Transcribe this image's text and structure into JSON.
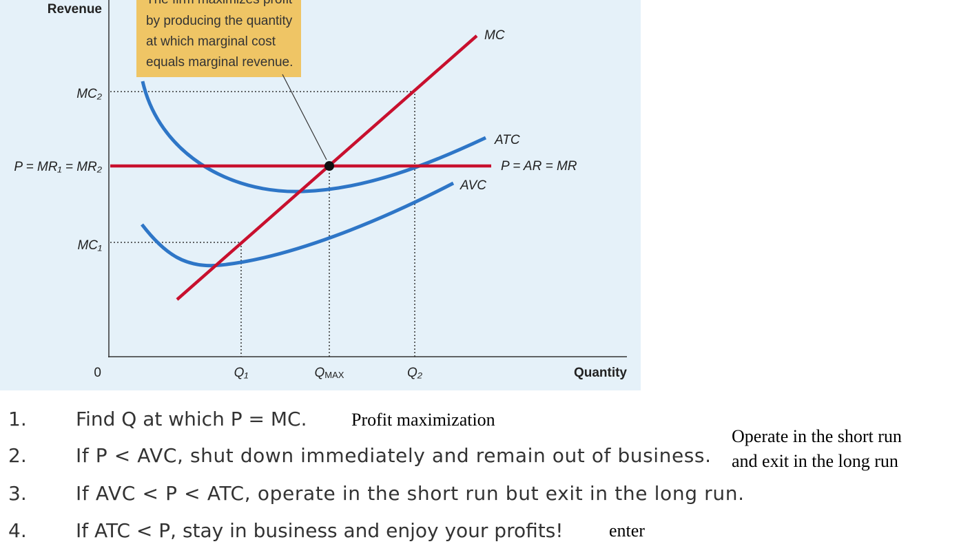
{
  "diagram": {
    "y_axis_label": "Revenue",
    "x_axis_label": "Quantity",
    "origin": "0",
    "y_labels": {
      "mc2": "MC₂",
      "p_line": "P = MR₁ = MR₂",
      "mc1": "MC₁"
    },
    "x_labels": {
      "q1": "Q₁",
      "qmax": {
        "main": "Q",
        "sub": "MAX"
      },
      "q2": "Q₂"
    },
    "curve_labels": {
      "mc": "MC",
      "atc": "ATC",
      "price": "P = AR = MR",
      "avc": "AVC"
    },
    "annotation": [
      "The firm maximizes profit",
      "by producing the quantity",
      "at which marginal cost",
      "equals marginal revenue."
    ]
  },
  "list": [
    {
      "number": "1.",
      "text": "Find Q at which P = MC."
    },
    {
      "number": "2.",
      "text": "If P < AVC, shut down immediately and remain out of business."
    },
    {
      "number": "3.",
      "text": "If AVC < P < ATC, operate in the short run but exit in the long run."
    },
    {
      "number": "4.",
      "text": "If ATC < P, stay in business and enjoy your profits!"
    }
  ],
  "notes": [
    "Profit maximization",
    "Operate in the short run",
    "and exit in the long run",
    "enter"
  ]
}
